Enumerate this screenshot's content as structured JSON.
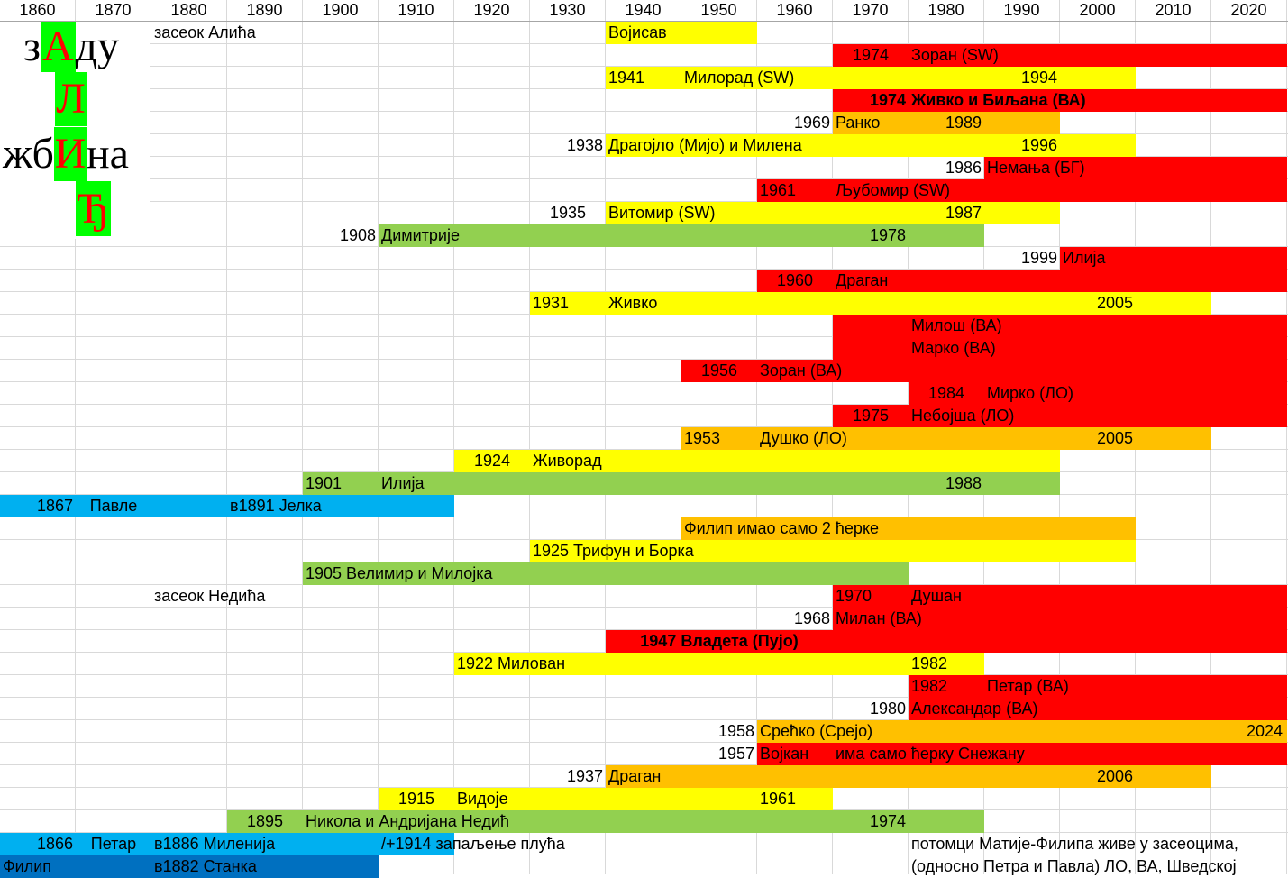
{
  "colors": {
    "red": "#FF0000",
    "yellow": "#FFFF00",
    "orange": "#FFC000",
    "green": "#92D050",
    "lightblue": "#00B0F0",
    "blue": "#0070C0",
    "title_highlight": "#00FF00"
  },
  "header": {
    "years": [
      "1860",
      "1870",
      "1880",
      "1890",
      "1900",
      "1910",
      "1920",
      "1930",
      "1940",
      "1950",
      "1960",
      "1970",
      "1980",
      "1990",
      "2000",
      "2010",
      "2020"
    ]
  },
  "title": {
    "line1_pre": "з",
    "line1_hl": "А",
    "line1_post": "ду",
    "line2_hl": "Л",
    "line3_pre": "жб",
    "line3_hl": "И",
    "line3_post": "на",
    "line4_hl": "Ђ"
  },
  "bars": [
    {
      "row": 1,
      "from": 1940,
      "to": 1950,
      "color": "yellow"
    },
    {
      "row": 2,
      "from": 1970,
      "to": 2020,
      "color": "red"
    },
    {
      "row": 3,
      "from": 1940,
      "to": 2000,
      "color": "yellow"
    },
    {
      "row": 4,
      "from": 1970,
      "to": 2020,
      "color": "red"
    },
    {
      "row": 5,
      "from": 1970,
      "to": 1990,
      "color": "orange"
    },
    {
      "row": 6,
      "from": 1940,
      "to": 2000,
      "color": "yellow"
    },
    {
      "row": 7,
      "from": 1990,
      "to": 2020,
      "color": "red"
    },
    {
      "row": 8,
      "from": 1960,
      "to": 2020,
      "color": "red"
    },
    {
      "row": 9,
      "from": 1940,
      "to": 1990,
      "color": "yellow"
    },
    {
      "row": 10,
      "from": 1910,
      "to": 1980,
      "color": "green"
    },
    {
      "row": 11,
      "from": 2000,
      "to": 2020,
      "color": "red"
    },
    {
      "row": 12,
      "from": 1960,
      "to": 2020,
      "color": "red"
    },
    {
      "row": 13,
      "from": 1930,
      "to": 2010,
      "color": "yellow"
    },
    {
      "row": 14,
      "from": 1970,
      "to": 2020,
      "color": "red"
    },
    {
      "row": 15,
      "from": 1970,
      "to": 2020,
      "color": "red"
    },
    {
      "row": 16,
      "from": 1950,
      "to": 2020,
      "color": "red"
    },
    {
      "row": 17,
      "from": 1980,
      "to": 2020,
      "color": "red"
    },
    {
      "row": 18,
      "from": 1970,
      "to": 2020,
      "color": "red"
    },
    {
      "row": 19,
      "from": 1950,
      "to": 2010,
      "color": "orange"
    },
    {
      "row": 20,
      "from": 1920,
      "to": 1990,
      "color": "yellow"
    },
    {
      "row": 21,
      "from": 1900,
      "to": 1990,
      "color": "green"
    },
    {
      "row": 22,
      "from": 1860,
      "to": 1910,
      "color": "lightblue"
    },
    {
      "row": 23,
      "from": 1950,
      "to": 2020,
      "color": "orange",
      "end_short": true
    },
    {
      "row": 24,
      "from": 1930,
      "to": 2000,
      "color": "yellow"
    },
    {
      "row": 25,
      "from": 1900,
      "to": 1970,
      "color": "green"
    },
    {
      "row": 26,
      "from": 1970,
      "to": 2020,
      "color": "red"
    },
    {
      "row": 27,
      "from": 1970,
      "to": 2020,
      "color": "red"
    },
    {
      "row": 28,
      "from": 1940,
      "to": 2020,
      "color": "red"
    },
    {
      "row": 29,
      "from": 1920,
      "to": 1980,
      "color": "yellow"
    },
    {
      "row": 30,
      "from": 1980,
      "to": 2020,
      "color": "red"
    },
    {
      "row": 31,
      "from": 1980,
      "to": 2020,
      "color": "red"
    },
    {
      "row": 32,
      "from": 1960,
      "to": 2020,
      "color": "orange"
    },
    {
      "row": 33,
      "from": 1960,
      "to": 2020,
      "color": "red"
    },
    {
      "row": 34,
      "from": 1940,
      "to": 2010,
      "color": "orange"
    },
    {
      "row": 35,
      "from": 1910,
      "to": 1960,
      "color": "yellow"
    },
    {
      "row": 36,
      "from": 1890,
      "to": 1980,
      "color": "green"
    },
    {
      "row": 37,
      "from": 1860,
      "to": 1910,
      "color": "lightblue"
    },
    {
      "row": 38,
      "from": 1860,
      "to": 1900,
      "color": "blue"
    }
  ],
  "texts": [
    {
      "row": 1,
      "col": 1880,
      "a": "l",
      "t": "засеок Алића"
    },
    {
      "row": 1,
      "col": 1940,
      "a": "l",
      "t": "Војисав"
    },
    {
      "row": 2,
      "col": 1970,
      "a": "c",
      "t": "1974"
    },
    {
      "row": 2,
      "col": 1980,
      "a": "l",
      "t": "Зоран (SW)"
    },
    {
      "row": 3,
      "col": 1940,
      "a": "l",
      "t": "1941"
    },
    {
      "row": 3,
      "col": 1950,
      "a": "l",
      "t": "Милорад (SW)"
    },
    {
      "row": 3,
      "col": 1990,
      "a": "r",
      "t": "1994"
    },
    {
      "row": 4,
      "col": 1970,
      "a": "r",
      "t": "1974",
      "b": true
    },
    {
      "row": 4,
      "col": 1980,
      "a": "l",
      "t": "Живко и Биљана (ВА)",
      "b": true
    },
    {
      "row": 5,
      "col": 1960,
      "a": "r",
      "t": "1969"
    },
    {
      "row": 5,
      "col": 1970,
      "a": "l",
      "t": "Ранко"
    },
    {
      "row": 5,
      "col": 1980,
      "a": "r",
      "t": "1989"
    },
    {
      "row": 6,
      "col": 1930,
      "a": "r",
      "t": "1938"
    },
    {
      "row": 6,
      "col": 1940,
      "a": "l",
      "t": "Драгојло (Мијо) и Милена"
    },
    {
      "row": 6,
      "col": 1990,
      "a": "r",
      "t": "1996"
    },
    {
      "row": 7,
      "col": 1980,
      "a": "r",
      "t": "1986"
    },
    {
      "row": 7,
      "col": 1990,
      "a": "l",
      "t": "Немања (БГ)"
    },
    {
      "row": 8,
      "col": 1960,
      "a": "l",
      "t": "1961"
    },
    {
      "row": 8,
      "col": 1970,
      "a": "l",
      "t": "Љубомир (SW)"
    },
    {
      "row": 9,
      "col": 1930,
      "a": "c",
      "t": "1935"
    },
    {
      "row": 9,
      "col": 1940,
      "a": "l",
      "t": "Витомир (SW)"
    },
    {
      "row": 9,
      "col": 1980,
      "a": "r",
      "t": "1987"
    },
    {
      "row": 10,
      "col": 1900,
      "a": "r",
      "t": "1908"
    },
    {
      "row": 10,
      "col": 1910,
      "a": "l",
      "t": "Димитрије"
    },
    {
      "row": 10,
      "col": 1970,
      "a": "r",
      "t": "1978"
    },
    {
      "row": 11,
      "col": 1990,
      "a": "r",
      "t": "1999"
    },
    {
      "row": 11,
      "col": 2000,
      "a": "l",
      "t": "Илија"
    },
    {
      "row": 12,
      "col": 1960,
      "a": "c",
      "t": "1960"
    },
    {
      "row": 12,
      "col": 1970,
      "a": "l",
      "t": "Драган"
    },
    {
      "row": 13,
      "col": 1930,
      "a": "l",
      "t": "1931"
    },
    {
      "row": 13,
      "col": 1940,
      "a": "l",
      "t": "Живко"
    },
    {
      "row": 13,
      "col": 2000,
      "a": "r",
      "t": "2005"
    },
    {
      "row": 14,
      "col": 1980,
      "a": "l",
      "t": "Милош (ВА)"
    },
    {
      "row": 15,
      "col": 1980,
      "a": "l",
      "t": "Марко (ВА)"
    },
    {
      "row": 16,
      "col": 1950,
      "a": "c",
      "t": "1956"
    },
    {
      "row": 16,
      "col": 1960,
      "a": "l",
      "t": "Зоран (ВА)"
    },
    {
      "row": 17,
      "col": 1980,
      "a": "c",
      "t": "1984"
    },
    {
      "row": 17,
      "col": 1990,
      "a": "l",
      "t": "Мирко (ЛО)"
    },
    {
      "row": 18,
      "col": 1970,
      "a": "c",
      "t": "1975"
    },
    {
      "row": 18,
      "col": 1980,
      "a": "l",
      "t": "Небојша (ЛО)"
    },
    {
      "row": 19,
      "col": 1950,
      "a": "l",
      "t": "1953"
    },
    {
      "row": 19,
      "col": 1960,
      "a": "l",
      "t": "Душко (ЛО)"
    },
    {
      "row": 19,
      "col": 2000,
      "a": "r",
      "t": "2005"
    },
    {
      "row": 20,
      "col": 1920,
      "a": "c",
      "t": "1924"
    },
    {
      "row": 20,
      "col": 1930,
      "a": "l",
      "t": "Живорад"
    },
    {
      "row": 21,
      "col": 1900,
      "a": "l",
      "t": "1901"
    },
    {
      "row": 21,
      "col": 1910,
      "a": "l",
      "t": "Илија"
    },
    {
      "row": 21,
      "col": 1980,
      "a": "r",
      "t": "1988"
    },
    {
      "row": 22,
      "col": 1860,
      "a": "r",
      "t": "1867"
    },
    {
      "row": 22,
      "col": 1870,
      "a": "c",
      "t": "Павле"
    },
    {
      "row": 22,
      "col": 1890,
      "a": "l",
      "t": "в1891 Јелка"
    },
    {
      "row": 23,
      "col": 1950,
      "a": "l",
      "t": "Филип имао само 2 ћерке"
    },
    {
      "row": 24,
      "col": 1930,
      "a": "l",
      "t": "1925 Трифун и Борка"
    },
    {
      "row": 25,
      "col": 1900,
      "a": "l",
      "t": "1905 Велимир и Милојка"
    },
    {
      "row": 26,
      "col": 1880,
      "a": "l",
      "t": "засеок Недића"
    },
    {
      "row": 26,
      "col": 1970,
      "a": "l",
      "t": "1970"
    },
    {
      "row": 26,
      "col": 1980,
      "a": "l",
      "t": "Душан"
    },
    {
      "row": 27,
      "col": 1960,
      "a": "r",
      "t": "1968"
    },
    {
      "row": 27,
      "col": 1970,
      "a": "l",
      "t": "Милан (ВА)"
    },
    {
      "row": 28,
      "col": 1950,
      "a": "c",
      "t": "1947 Владета (Пујо)",
      "b": true
    },
    {
      "row": 29,
      "col": 1920,
      "a": "l",
      "t": "1922 Милован"
    },
    {
      "row": 29,
      "col": 1980,
      "a": "l",
      "t": "1982"
    },
    {
      "row": 30,
      "col": 1980,
      "a": "l",
      "t": "1982"
    },
    {
      "row": 30,
      "col": 1990,
      "a": "l",
      "t": "Петар (ВА)"
    },
    {
      "row": 31,
      "col": 1970,
      "a": "r",
      "t": "1980"
    },
    {
      "row": 31,
      "col": 1980,
      "a": "l",
      "t": "Александар (ВА)"
    },
    {
      "row": 32,
      "col": 1950,
      "a": "r",
      "t": "1958"
    },
    {
      "row": 32,
      "col": 1960,
      "a": "l",
      "t": "Срећко (Срејо)"
    },
    {
      "row": 32,
      "col": 2020,
      "a": "r",
      "t": "2024"
    },
    {
      "row": 33,
      "col": 1950,
      "a": "r",
      "t": "1957"
    },
    {
      "row": 33,
      "col": 1960,
      "a": "l",
      "t": "Војкан"
    },
    {
      "row": 33,
      "col": 1970,
      "a": "l",
      "t": "има само ћерку Снежану"
    },
    {
      "row": 34,
      "col": 1930,
      "a": "r",
      "t": "1937"
    },
    {
      "row": 34,
      "col": 1940,
      "a": "l",
      "t": "Драган"
    },
    {
      "row": 34,
      "col": 2000,
      "a": "r",
      "t": "2006"
    },
    {
      "row": 35,
      "col": 1910,
      "a": "c",
      "t": "1915"
    },
    {
      "row": 35,
      "col": 1920,
      "a": "l",
      "t": "Видоје"
    },
    {
      "row": 35,
      "col": 1960,
      "a": "l",
      "t": "1961"
    },
    {
      "row": 36,
      "col": 1890,
      "a": "c",
      "t": "1895"
    },
    {
      "row": 36,
      "col": 1900,
      "a": "l",
      "t": "Никола и Андријана Недић"
    },
    {
      "row": 36,
      "col": 1970,
      "a": "r",
      "t": "1974"
    },
    {
      "row": 37,
      "col": 1860,
      "a": "r",
      "t": "1866"
    },
    {
      "row": 37,
      "col": 1870,
      "a": "c",
      "t": "Петар"
    },
    {
      "row": 37,
      "col": 1880,
      "a": "l",
      "t": "в1886 Миленија"
    },
    {
      "row": 37,
      "col": 1910,
      "a": "l",
      "t": "/+1914 запаљење плућа"
    },
    {
      "row": 37,
      "col": 1980,
      "a": "l",
      "t": "потомци Матије-Филипа живе у засеоцима,"
    },
    {
      "row": 38,
      "col": 1860,
      "a": "l",
      "t": "Филип"
    },
    {
      "row": 38,
      "col": 1880,
      "a": "l",
      "t": "в1882 Станка"
    },
    {
      "row": 38,
      "col": 1980,
      "a": "l",
      "t": "(односно Петра и Павла)  ЛО, ВА, Шведској"
    }
  ]
}
